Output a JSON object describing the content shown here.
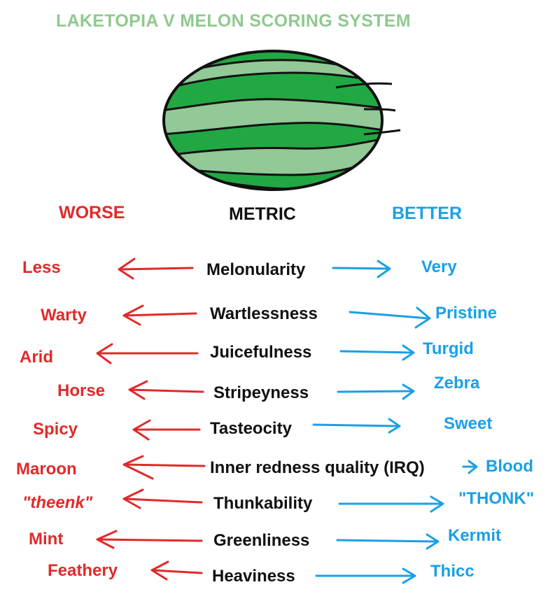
{
  "title": "LAKETOPIA V MELON SCORING SYSTEM",
  "headers": {
    "worse": "WORSE",
    "metric": "METRIC",
    "better": "BETTER"
  },
  "colors": {
    "worse": "#e02a2a",
    "better": "#1aa0e6",
    "title": "#8fc98f",
    "melon_dark": "#22a843",
    "melon_light": "#92c997",
    "outline": "#111111"
  },
  "rows": [
    {
      "worse": "Less",
      "metric": "Melonularity",
      "better": "Very"
    },
    {
      "worse": "Warty",
      "metric": "Wartlessness",
      "better": "Pristine"
    },
    {
      "worse": "Arid",
      "metric": "Juicefulness",
      "better": "Turgid"
    },
    {
      "worse": "Horse",
      "metric": "Stripeyness",
      "better": "Zebra"
    },
    {
      "worse": "Spicy",
      "metric": "Tasteocity",
      "better": "Sweet"
    },
    {
      "worse": "Maroon",
      "metric": "Inner redness quality (IRQ)",
      "better": "Blood"
    },
    {
      "worse": "\"theenk\"",
      "metric": "Thunkability",
      "better": "\"THONK\""
    },
    {
      "worse": "Mint",
      "metric": "Greenliness",
      "better": "Kermit"
    },
    {
      "worse": "Feathery",
      "metric": "Heaviness",
      "better": "Thicc"
    }
  ]
}
